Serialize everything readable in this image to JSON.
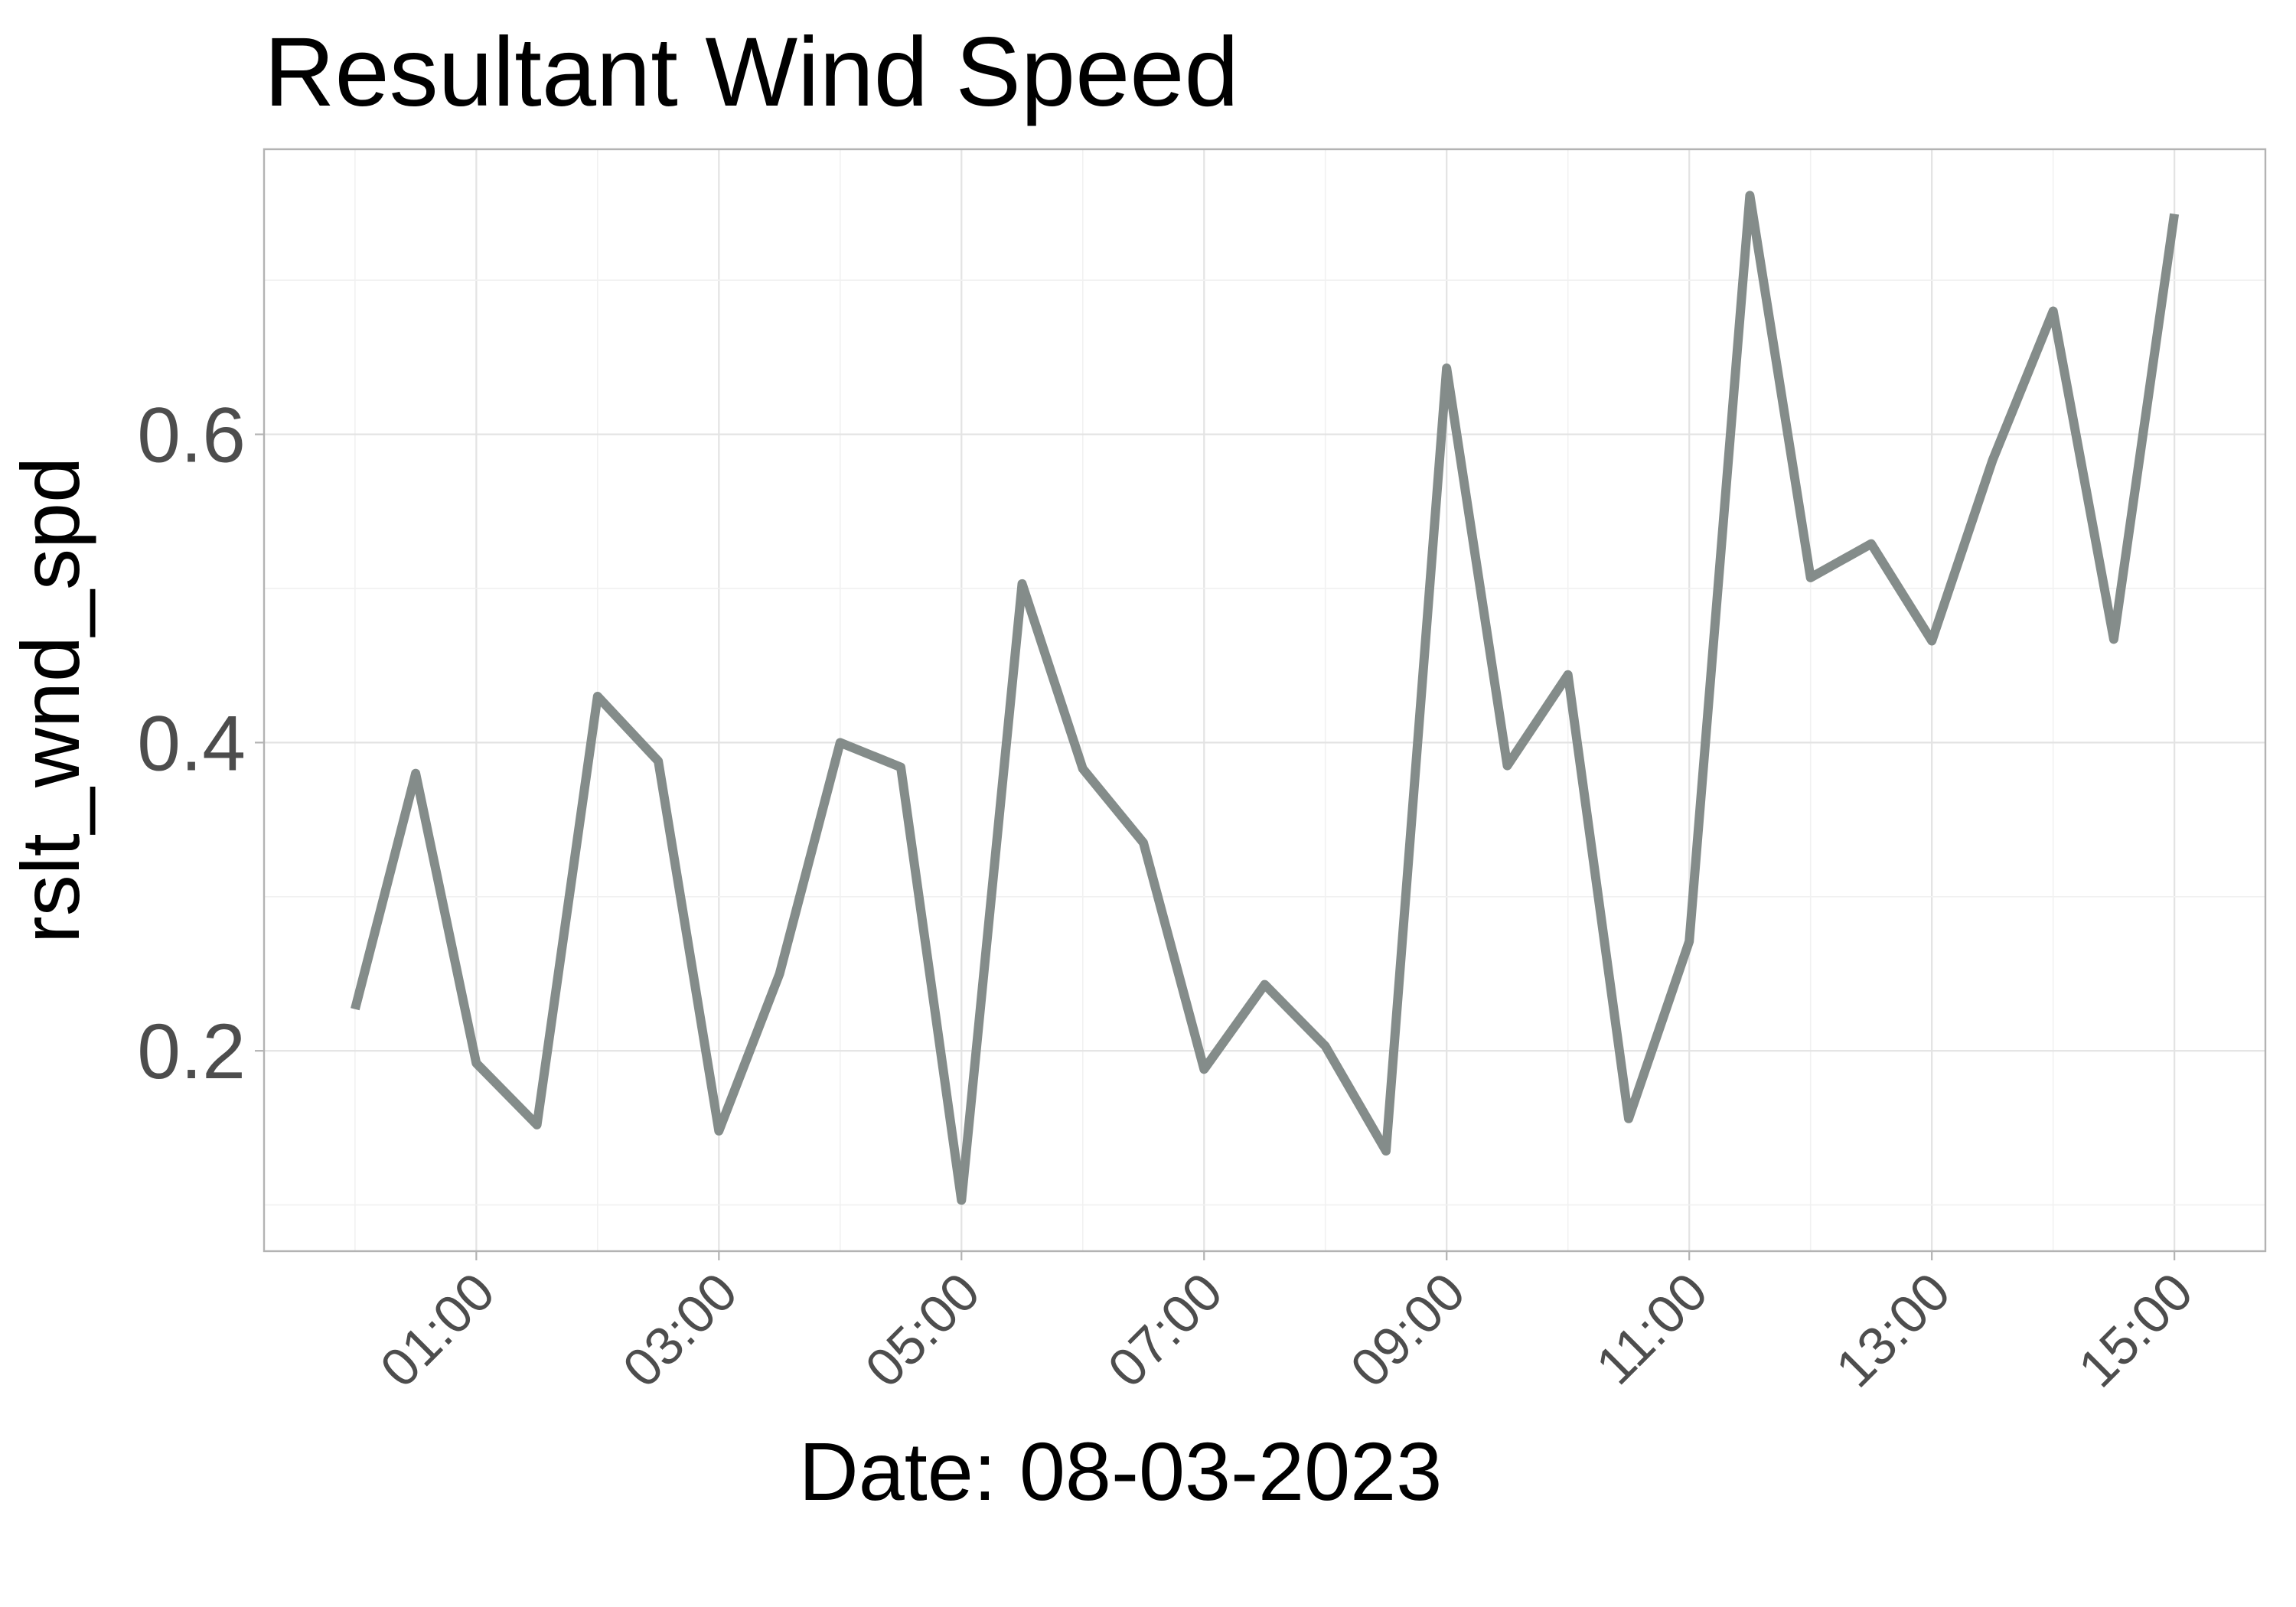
{
  "chart_data": {
    "type": "line",
    "title": "Resultant Wind Speed",
    "xlabel": "Date: 08-03-2023",
    "ylabel": "rslt_wnd_spd",
    "x_unit": "hours",
    "x_tick_values": [
      1,
      3,
      5,
      7,
      9,
      11,
      13,
      15
    ],
    "x_tick_labels": [
      "01:00",
      "03:00",
      "05:00",
      "07:00",
      "09:00",
      "11:00",
      "13:00",
      "15:00"
    ],
    "y_tick_values": [
      0.2,
      0.4,
      0.6
    ],
    "y_tick_labels": [
      "0.2",
      "0.4",
      "0.6"
    ],
    "xlim": [
      -0.75,
      15.75
    ],
    "ylim": [
      0.07,
      0.785
    ],
    "grid": true,
    "legend": "none",
    "line_color": "#848c8a",
    "series": [
      {
        "x": [
          0,
          0.5,
          1,
          1.5,
          2,
          2.5,
          3,
          3.5,
          4,
          4.5,
          5,
          5.5,
          6,
          6.5,
          7,
          7.5,
          8,
          8.5,
          9,
          9.5,
          10,
          10.5,
          11,
          11.5,
          12,
          12.5,
          13,
          13.5,
          14,
          14.5,
          15
        ],
        "values": [
          0.227,
          0.38,
          0.192,
          0.152,
          0.43,
          0.388,
          0.148,
          0.25,
          0.4,
          0.384,
          0.103,
          0.503,
          0.383,
          0.335,
          0.188,
          0.243,
          0.203,
          0.135,
          0.643,
          0.385,
          0.444,
          0.156,
          0.271,
          0.755,
          0.507,
          0.529,
          0.466,
          0.583,
          0.68,
          0.467,
          0.743
        ]
      }
    ]
  }
}
